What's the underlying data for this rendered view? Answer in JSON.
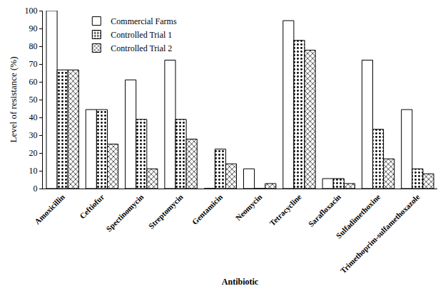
{
  "chart_data": {
    "type": "bar",
    "x_label": "Antibiotic",
    "y_label": "Level of resistance (%)",
    "categories": [
      "Amoxicillin",
      "Ceftiofur",
      "Spectinomycin",
      "Streptomycin",
      "Gentamicin",
      "Neomycin",
      "Tetracycline",
      "Sarafloxacin",
      "Sulfadimethoxine",
      "Trimethoprim-sulfamethoxazole"
    ],
    "series": [
      {
        "name": "Commercial Farms",
        "color": "#ffffff",
        "marker": "plain",
        "values": [
          100,
          44.4,
          61.1,
          72.2,
          0,
          11.1,
          94.4,
          5.6,
          72.2,
          44.4
        ]
      },
      {
        "name": "Controlled Trial 1",
        "color": "#ffffff",
        "marker": "dotted",
        "values": [
          66.7,
          44.4,
          38.9,
          38.9,
          22.2,
          0,
          83.3,
          5.6,
          33.3,
          11.1
        ]
      },
      {
        "name": "Controlled Trial 2",
        "color": "#ffffff",
        "marker": "crosshatch",
        "values": [
          66.7,
          25,
          11.1,
          27.8,
          13.9,
          2.8,
          77.8,
          2.8,
          16.7,
          8.3
        ]
      }
    ],
    "ylim": [
      0,
      100
    ],
    "yticks": [
      0,
      10,
      20,
      30,
      40,
      50,
      60,
      70,
      80,
      90,
      100
    ],
    "grid": false,
    "legend": "upper left"
  }
}
